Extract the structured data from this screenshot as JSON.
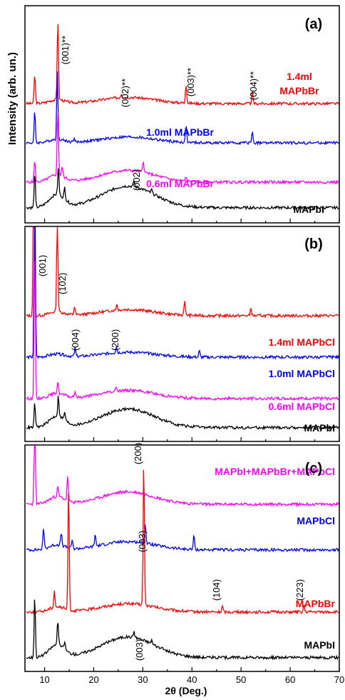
{
  "figure": {
    "xlabel": "2θ (Deg.)",
    "ylabel": "Intensity (arb. un.)",
    "xticks": [
      "10",
      "20",
      "30",
      "40",
      "50",
      "60",
      "70"
    ]
  },
  "chart_data": [
    {
      "type": "line",
      "panel_label": "(a)",
      "xlim": [
        6,
        70
      ],
      "series": [
        {
          "name": "1.4ml MAPbBr",
          "label_lines": [
            "1.4ml",
            "MAPbBr"
          ],
          "color": "#ff0000",
          "offset": 3,
          "amp": 0.16,
          "peaks": [
            [
              8.0,
              0.75
            ],
            [
              12.7,
              2.1
            ],
            [
              25.6,
              0.1
            ],
            [
              38.8,
              0.5
            ],
            [
              52.3,
              0.3
            ]
          ]
        },
        {
          "name": "1.0ml MAPbBr",
          "label_lines": [
            "1.0ml MAPbBr"
          ],
          "color": "#0000ff",
          "offset": 2,
          "amp": 0.15,
          "peaks": [
            [
              8.0,
              0.8
            ],
            [
              12.6,
              1.7
            ],
            [
              16.0,
              0.1
            ],
            [
              38.8,
              0.45
            ],
            [
              52.3,
              0.3
            ]
          ]
        },
        {
          "name": "0.6ml MAPbBr",
          "label_lines": [
            "0.6ml MAPbBr"
          ],
          "color": "#ff00ff",
          "offset": 1,
          "amp": 0.3,
          "peaks": [
            [
              8.0,
              0.55
            ],
            [
              12.7,
              1.75
            ],
            [
              13.6,
              0.25
            ],
            [
              30.1,
              0.3
            ],
            [
              38.8,
              0.12
            ]
          ]
        },
        {
          "name": "MAPbI",
          "label_lines": [
            "MAPbI"
          ],
          "color": "#000000",
          "offset": 0.35,
          "amp": 0.55,
          "peaks": [
            [
              8.0,
              0.9
            ],
            [
              12.8,
              0.7
            ],
            [
              14.1,
              0.3
            ],
            [
              28.2,
              0.15
            ],
            [
              31.8,
              0.1
            ]
          ]
        }
      ],
      "annotations": [
        {
          "text": "(001)**",
          "x": 12.7
        },
        {
          "text": "(002)**",
          "x": 25.6
        },
        {
          "text": "(003)**",
          "x": 38.8
        },
        {
          "text": "(004)**",
          "x": 52.3
        },
        {
          "text": "(002)",
          "x": 30.1
        }
      ]
    },
    {
      "type": "line",
      "panel_label": "(b)",
      "xlim": [
        6,
        70
      ],
      "series": [
        {
          "name": "1.4ml MAPbCl",
          "label_lines": [
            "1.4ml MAPbCl"
          ],
          "color": "#ff0000",
          "offset": 3,
          "amp": 0.15,
          "peaks": [
            [
              7.8,
              4.3
            ],
            [
              12.6,
              2.6
            ],
            [
              16.1,
              0.2
            ],
            [
              24.7,
              0.15
            ],
            [
              38.5,
              0.35
            ],
            [
              52.0,
              0.2
            ]
          ]
        },
        {
          "name": "1.0ml MAPbCl",
          "label_lines": [
            "1.0ml MAPbCl"
          ],
          "color": "#0000ff",
          "offset": 2,
          "amp": 0.12,
          "peaks": [
            [
              8.0,
              5.5
            ],
            [
              16.2,
              0.2
            ],
            [
              24.6,
              0.15
            ],
            [
              41.5,
              0.15
            ]
          ]
        },
        {
          "name": "0.6ml MAPbCl",
          "label_lines": [
            "0.6ml MAPbCl"
          ],
          "color": "#ff00ff",
          "offset": 1,
          "amp": 0.2,
          "peaks": [
            [
              8.0,
              3.6
            ],
            [
              12.7,
              0.3
            ],
            [
              16.2,
              0.15
            ],
            [
              24.6,
              0.1
            ]
          ]
        },
        {
          "name": "MAPbI",
          "label_lines": [
            "MAPbI"
          ],
          "color": "#000000",
          "offset": 0.3,
          "amp": 0.45,
          "peaks": [
            [
              8.0,
              0.6
            ],
            [
              12.8,
              0.5
            ],
            [
              14.1,
              0.2
            ]
          ]
        }
      ],
      "annotations": [
        {
          "text": "(001)",
          "x": 8.0
        },
        {
          "text": "(102)",
          "x": 12.6
        },
        {
          "text": "(004)",
          "x": 16.1
        },
        {
          "text": "(200)",
          "x": 24.7
        }
      ]
    },
    {
      "type": "line",
      "panel_label": "(c)",
      "xlim": [
        6,
        70
      ],
      "series": [
        {
          "name": "MAPbI+MAPbBr+MAPbCl",
          "label_lines": [
            "MAPbI+MAPbBr+MAPbCl"
          ],
          "color": "#ff00ff",
          "offset": 4,
          "amp": 0.3,
          "peaks": [
            [
              8.0,
              2.6
            ],
            [
              12.7,
              0.25
            ],
            [
              14.7,
              0.6
            ]
          ]
        },
        {
          "name": "MAPbCl",
          "label_lines": [
            "MAPbCl"
          ],
          "color": "#0000ff",
          "offset": 2.9,
          "amp": 0.2,
          "peaks": [
            [
              9.8,
              0.5
            ],
            [
              13.4,
              0.3
            ],
            [
              15.6,
              0.2
            ],
            [
              20.3,
              0.3
            ],
            [
              30.5,
              0.5
            ],
            [
              40.4,
              0.35
            ]
          ]
        },
        {
          "name": "MAPbBr",
          "label_lines": [
            "MAPbBr"
          ],
          "color": "#ff0000",
          "offset": 1.4,
          "amp": 0.2,
          "peaks": [
            [
              12.0,
              0.4
            ],
            [
              14.9,
              3.0
            ],
            [
              30.2,
              3.5
            ],
            [
              46.2,
              0.15
            ],
            [
              62.8,
              0.15
            ]
          ]
        },
        {
          "name": "MAPbI",
          "label_lines": [
            "MAPbI"
          ],
          "color": "#000000",
          "offset": 0.3,
          "amp": 0.5,
          "peaks": [
            [
              8.0,
              1.5
            ],
            [
              12.7,
              0.6
            ],
            [
              14.1,
              0.2
            ],
            [
              28.2,
              0.15
            ],
            [
              31.8,
              0.1
            ]
          ]
        }
      ],
      "annotations": [
        {
          "text": "(200)",
          "x": 30.2
        },
        {
          "text": "(003)",
          "x": 30.2
        },
        {
          "text": "(104)",
          "x": 46.2
        },
        {
          "text": "(223)",
          "x": 62.8
        },
        {
          "text": "(003)",
          "x": 30.0
        }
      ]
    }
  ]
}
